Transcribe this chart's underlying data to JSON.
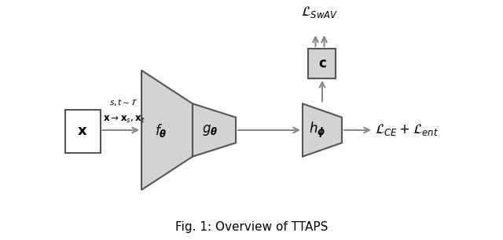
{
  "fig_width": 6.4,
  "fig_height": 3.06,
  "dpi": 100,
  "bg_color": "#ffffff",
  "box_color": "#d3d3d3",
  "box_edge_color": "#555555",
  "arrow_color": "#888888",
  "title": "Fig. 1: Overview of TTAPS",
  "title_fontsize": 11,
  "label_x_box": "$\\mathbf{x}$",
  "label_fg": "$f_{\\boldsymbol{\\theta}}$",
  "label_gg": "$g_{\\boldsymbol{\\theta}}$",
  "label_hphi": "$h_{\\boldsymbol{\\phi}}$",
  "label_c": "$\\mathbf{c}$",
  "label_loss_swav": "$\\mathcal{L}_{SwAV}$",
  "label_loss_ce_ent": "$\\mathcal{L}_{CE} + \\mathcal{L}_{ent}$",
  "label_arrow_top": "$s, t \\sim \\mathcal{T}$",
  "label_arrow_result": "$\\mathbf{x} \\rightarrow \\mathbf{x}_s, \\mathbf{x}_t$"
}
